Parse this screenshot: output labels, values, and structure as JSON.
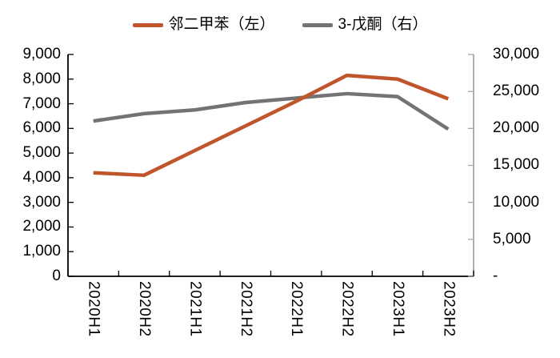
{
  "legend": {
    "items": [
      {
        "label": "邻二甲苯（左）",
        "color": "#C0542B"
      },
      {
        "label": "3-戊酮（右）",
        "color": "#737373"
      }
    ]
  },
  "chart_data": {
    "type": "line",
    "title": "",
    "categories": [
      "2020H1",
      "2020H2",
      "2021H1",
      "2021H2",
      "2022H1",
      "2022H2",
      "2023H1",
      "2023H2"
    ],
    "series": [
      {
        "name": "邻二甲苯（左）",
        "axis": "left",
        "color": "#C0542B",
        "values": [
          4200,
          4100,
          5100,
          6100,
          7100,
          8150,
          8000,
          7200
        ]
      },
      {
        "name": "3-戊酮（右）",
        "axis": "right",
        "color": "#737373",
        "values": [
          21000,
          22000,
          22500,
          23500,
          24100,
          24700,
          24300,
          19900
        ]
      }
    ],
    "left_axis": {
      "min": 0,
      "max": 9000,
      "step": 1000,
      "tick_labels": [
        "9,000",
        "8,000",
        "7,000",
        "6,000",
        "5,000",
        "4,000",
        "3,000",
        "2,000",
        "1,000",
        "0"
      ],
      "color": "#000000"
    },
    "right_axis": {
      "min": 0,
      "max": 30000,
      "step": 5000,
      "tick_labels": [
        "30,000",
        "25,000",
        "20,000",
        "15,000",
        "10,000",
        "5,000",
        "-"
      ],
      "color": "#A6A6A6"
    },
    "grid": false,
    "legend_position": "top",
    "tick_style": "inside"
  }
}
